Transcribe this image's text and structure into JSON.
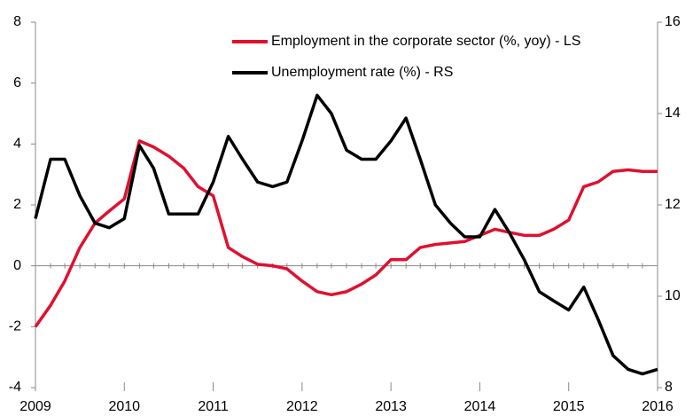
{
  "chart_data": {
    "type": "line",
    "x": [
      2009,
      2009.17,
      2009.33,
      2009.5,
      2009.67,
      2009.83,
      2010,
      2010.17,
      2010.33,
      2010.5,
      2010.67,
      2010.83,
      2011,
      2011.17,
      2011.33,
      2011.5,
      2011.67,
      2011.83,
      2012,
      2012.17,
      2012.33,
      2012.5,
      2012.67,
      2012.83,
      2013,
      2013.17,
      2013.33,
      2013.5,
      2013.67,
      2013.83,
      2014,
      2014.17,
      2014.33,
      2014.5,
      2014.67,
      2014.83,
      2015,
      2015.17,
      2015.33,
      2015.5,
      2015.67,
      2015.83,
      2016
    ],
    "series": [
      {
        "name": "Employment in the corporate sector (%, yoy) - LS",
        "color": "#e0102f",
        "axis": "y",
        "values": [
          -2.0,
          -1.3,
          -0.5,
          0.6,
          1.4,
          1.8,
          2.2,
          4.1,
          3.9,
          3.6,
          3.2,
          2.6,
          2.3,
          0.6,
          0.3,
          0.05,
          0.0,
          -0.1,
          -0.5,
          -0.85,
          -0.95,
          -0.85,
          -0.6,
          -0.3,
          0.2,
          0.2,
          0.6,
          0.7,
          0.75,
          0.8,
          1.0,
          1.2,
          1.1,
          1.0,
          1.0,
          1.2,
          1.5,
          2.6,
          2.75,
          3.1,
          3.15,
          3.1,
          3.1
        ]
      },
      {
        "name": "Unemployment rate (%) - RS",
        "color": "#000000",
        "axis": "y2",
        "values": [
          11.7,
          13.0,
          13.0,
          12.2,
          11.6,
          11.5,
          11.7,
          13.3,
          12.8,
          11.8,
          11.8,
          11.8,
          12.5,
          13.5,
          13.0,
          12.5,
          12.4,
          12.5,
          13.4,
          14.4,
          14.0,
          13.2,
          13.0,
          13.0,
          13.4,
          13.9,
          13.0,
          12.0,
          11.6,
          11.3,
          11.3,
          11.9,
          11.4,
          10.8,
          10.1,
          9.9,
          9.7,
          10.2,
          9.5,
          8.7,
          8.4,
          8.3,
          8.4
        ]
      }
    ],
    "xlim": [
      2009,
      2016
    ],
    "xticks": [
      2009,
      2010,
      2011,
      2012,
      2013,
      2014,
      2015,
      2016
    ],
    "ylim": [
      -4,
      8
    ],
    "yticks": [
      -4,
      -2,
      0,
      2,
      4,
      6,
      8
    ],
    "y2lim": [
      8,
      16
    ],
    "y2ticks": [
      8,
      10,
      12,
      14,
      16
    ]
  }
}
